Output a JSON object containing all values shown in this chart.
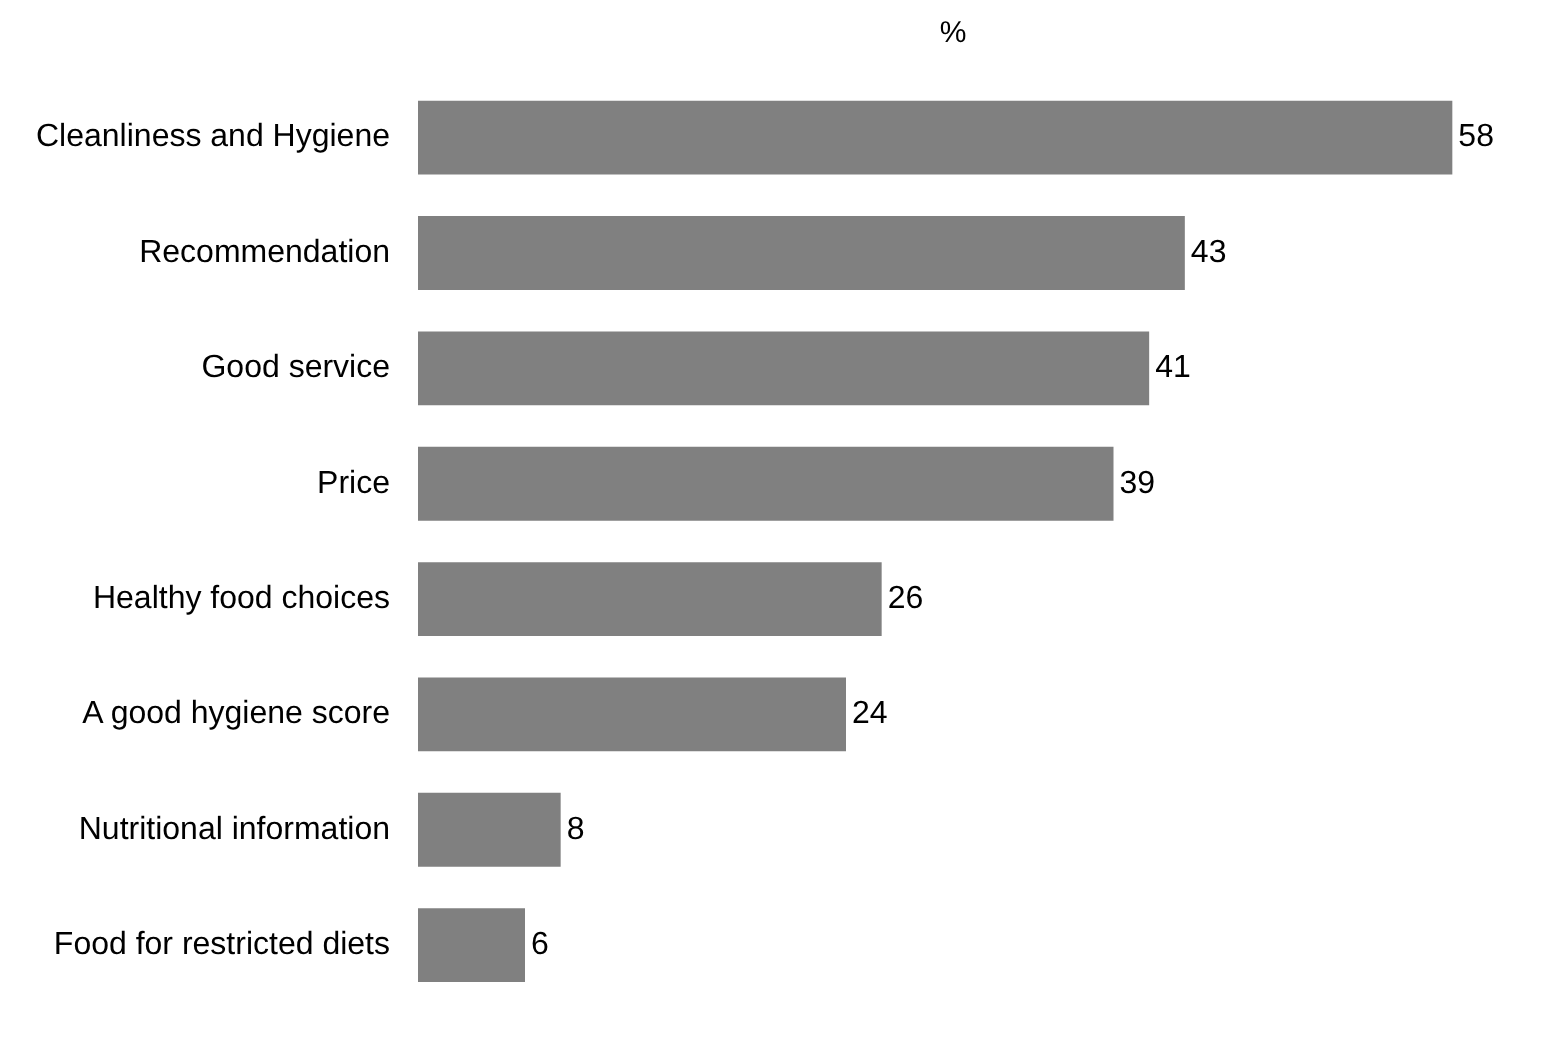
{
  "chart_data": {
    "type": "bar",
    "orientation": "horizontal",
    "xlabel": "%",
    "categories": [
      "Cleanliness and Hygiene",
      "Recommendation",
      "Good service",
      "Price",
      "Healthy food choices",
      "A good hygiene score",
      "Nutritional information",
      "Food for restricted diets"
    ],
    "values": [
      58,
      43,
      41,
      39,
      26,
      24,
      8,
      6
    ],
    "color": "#808080",
    "data_labels": true,
    "grid": false,
    "legend": false,
    "tick_labels": "y"
  }
}
